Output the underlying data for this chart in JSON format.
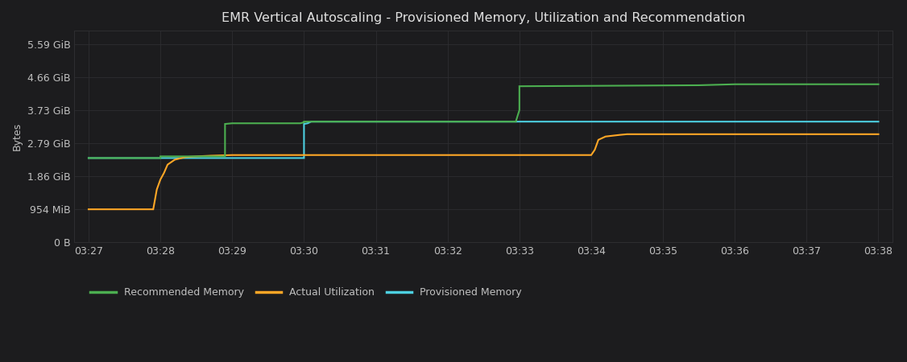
{
  "title": "EMR Vertical Autoscaling - Provisioned Memory, Utilization and Recommendation",
  "background_color": "#1c1c1e",
  "plot_bg_color": "#1c1c1e",
  "grid_color": "#2d2d30",
  "text_color": "#c0c0c0",
  "title_color": "#e0e0e0",
  "ylabel": "Bytes",
  "ytick_labels": [
    "0 B",
    "954 MiB",
    "1.86 GiB",
    "2.79 GiB",
    "3.73 GiB",
    "4.66 GiB",
    "5.59 GiB"
  ],
  "ytick_values": [
    0,
    1000341094,
    1997538918,
    2994736742,
    4005933158,
    5003130982,
    6000328806
  ],
  "ylim": [
    0,
    6400000000
  ],
  "xlim_min": -0.2,
  "xlim_max": 11.2,
  "xtick_positions": [
    0,
    1,
    2,
    3,
    4,
    5,
    6,
    7,
    8,
    9,
    10,
    11
  ],
  "xtick_labels": [
    "03:27",
    "03:28",
    "03:29",
    "03:30",
    "03:31",
    "03:32",
    "03:33",
    "03:34",
    "03:35",
    "03:36",
    "03:37",
    "03:38"
  ],
  "legend_labels": [
    "Recommended Memory",
    "Actual Utilization",
    "Provisioned Memory"
  ],
  "legend_colors": [
    "#4caf50",
    "#ffa726",
    "#4dd0e1"
  ],
  "line_width": 1.5,
  "recommended": {
    "color": "#4caf50",
    "x": [
      0.0,
      1.0,
      1.0,
      1.05,
      1.85,
      1.9,
      1.9,
      2.0,
      2.95,
      3.0,
      3.0,
      5.0,
      5.5,
      5.95,
      6.0,
      6.0,
      8.5,
      9.0,
      9.5,
      10.0,
      10.5,
      11.0
    ],
    "y": [
      2550000000.0,
      2550000000.0,
      2600000000.0,
      2600000000.0,
      2600000000.0,
      2600000000.0,
      3580000000.0,
      3600000000.0,
      3600000000.0,
      3630000000.0,
      3650000000.0,
      3650000000.0,
      3650000000.0,
      3650000000.0,
      4000000000.0,
      4720000000.0,
      4750000000.0,
      4780000000.0,
      4780000000.0,
      4780000000.0,
      4780000000.0,
      4780000000.0
    ]
  },
  "utilization": {
    "color": "#ffa726",
    "x": [
      0.0,
      0.05,
      0.9,
      0.95,
      1.0,
      1.05,
      1.1,
      1.2,
      1.35,
      1.5,
      1.7,
      1.85,
      2.0,
      2.5,
      3.0,
      3.5,
      4.0,
      4.5,
      5.0,
      5.5,
      6.0,
      6.5,
      7.0,
      7.0,
      7.05,
      7.1,
      7.2,
      7.4,
      7.45,
      7.5,
      8.0,
      8.5,
      9.0,
      9.5,
      10.0,
      10.5,
      11.0
    ],
    "y": [
      1000000000.0,
      1000000000.0,
      1000000000.0,
      1600000000.0,
      1900000000.0,
      2100000000.0,
      2350000000.0,
      2500000000.0,
      2580000000.0,
      2600000000.0,
      2620000000.0,
      2630000000.0,
      2640000000.0,
      2640000000.0,
      2640000000.0,
      2640000000.0,
      2640000000.0,
      2640000000.0,
      2640000000.0,
      2640000000.0,
      2640000000.0,
      2640000000.0,
      2640000000.0,
      2640000000.0,
      2800000000.0,
      3100000000.0,
      3200000000.0,
      3250000000.0,
      3260000000.0,
      3270000000.0,
      3270000000.0,
      3270000000.0,
      3270000000.0,
      3270000000.0,
      3270000000.0,
      3270000000.0,
      3270000000.0
    ]
  },
  "provisioned": {
    "color": "#4dd0e1",
    "x": [
      0.0,
      1.0,
      1.05,
      2.5,
      2.95,
      3.0,
      3.0,
      3.05,
      3.1,
      3.5,
      4.0,
      4.5,
      5.0,
      5.5,
      6.0,
      6.5,
      7.0,
      7.5,
      8.0,
      8.5,
      9.0,
      9.5,
      10.0,
      10.5,
      11.0
    ],
    "y": [
      2550000000.0,
      2550000000.0,
      2550000000.0,
      2550000000.0,
      2550000000.0,
      2550000000.0,
      3580000000.0,
      3600000000.0,
      3650000000.0,
      3650000000.0,
      3650000000.0,
      3650000000.0,
      3650000000.0,
      3650000000.0,
      3650000000.0,
      3650000000.0,
      3650000000.0,
      3650000000.0,
      3650000000.0,
      3650000000.0,
      3650000000.0,
      3650000000.0,
      3650000000.0,
      3650000000.0,
      3650000000.0
    ]
  }
}
